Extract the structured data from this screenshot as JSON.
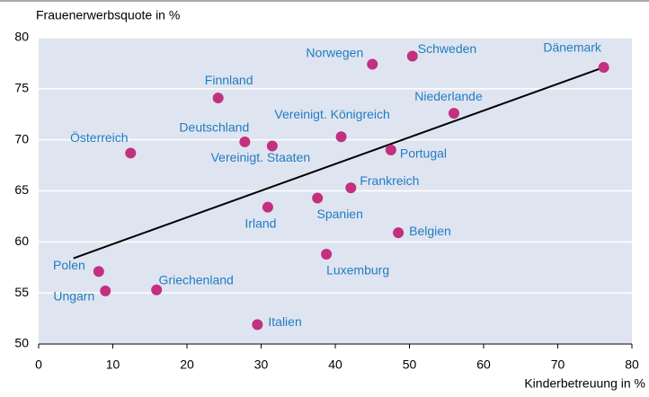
{
  "chart_data": {
    "type": "scatter",
    "ylabel": "Frauenerwerbsquote in %",
    "xlabel": "Kinderbetreuung in %",
    "labels": [
      "Schweden",
      "Norwegen",
      "Dänemark",
      "Finnland",
      "Niederlande",
      "Vereinigt. Königreich",
      "Deutschland",
      "Vereinigt. Staaten",
      "Österreich",
      "Portugal",
      "Frankreich",
      "Spanien",
      "Irland",
      "Belgien",
      "Luxemburg",
      "Polen",
      "Ungarn",
      "Griechenland",
      "Italien"
    ],
    "x": [
      50.4,
      45.0,
      76.2,
      24.2,
      56.0,
      40.8,
      27.8,
      31.5,
      12.4,
      47.5,
      42.1,
      37.6,
      30.9,
      48.5,
      38.8,
      8.1,
      9.0,
      15.9,
      29.5
    ],
    "values": [
      78.2,
      77.4,
      77.1,
      74.1,
      72.6,
      70.3,
      69.8,
      69.4,
      68.7,
      69.0,
      65.3,
      64.3,
      63.4,
      60.9,
      58.8,
      57.1,
      55.2,
      55.3,
      51.9
    ],
    "color": "#c2307f",
    "trend": {
      "x": [
        4.7,
        76.2
      ],
      "values": [
        58.4,
        77.1
      ]
    },
    "xlim": [
      0,
      80
    ],
    "xticks": [
      0,
      10,
      20,
      30,
      40,
      50,
      60,
      70,
      80
    ],
    "ylim": [
      50,
      80
    ],
    "yticks": [
      50,
      55,
      60,
      65,
      70,
      75,
      80
    ],
    "grid": true
  }
}
